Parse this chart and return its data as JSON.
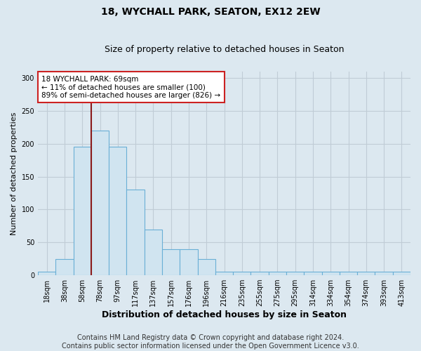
{
  "title": "18, WYCHALL PARK, SEATON, EX12 2EW",
  "subtitle": "Size of property relative to detached houses in Seaton",
  "xlabel": "Distribution of detached houses by size in Seaton",
  "ylabel": "Number of detached properties",
  "footer_line1": "Contains HM Land Registry data © Crown copyright and database right 2024.",
  "footer_line2": "Contains public sector information licensed under the Open Government Licence v3.0.",
  "bin_labels": [
    "18sqm",
    "38sqm",
    "58sqm",
    "78sqm",
    "97sqm",
    "117sqm",
    "137sqm",
    "157sqm",
    "176sqm",
    "196sqm",
    "216sqm",
    "235sqm",
    "255sqm",
    "275sqm",
    "295sqm",
    "314sqm",
    "334sqm",
    "354sqm",
    "374sqm",
    "393sqm",
    "413sqm"
  ],
  "bar_values": [
    5,
    25,
    195,
    220,
    195,
    130,
    70,
    40,
    40,
    25,
    5,
    5,
    5,
    5,
    5,
    5,
    5,
    5,
    5,
    5,
    5
  ],
  "bar_color": "#d0e4f0",
  "bar_edgecolor": "#6aafd6",
  "property_line_color": "#8b1a1a",
  "property_line_bin_index": 3,
  "annotation_text": "18 WYCHALL PARK: 69sqm\n← 11% of detached houses are smaller (100)\n89% of semi-detached houses are larger (826) →",
  "annotation_box_color": "white",
  "annotation_box_edgecolor": "#cc2222",
  "ylim": [
    0,
    310
  ],
  "yticks": [
    0,
    50,
    100,
    150,
    200,
    250,
    300
  ],
  "background_color": "#dce8f0",
  "axes_background_color": "#dce8f0",
  "grid_color": "#c0ccd6",
  "title_fontsize": 10,
  "subtitle_fontsize": 9,
  "xlabel_fontsize": 9,
  "ylabel_fontsize": 8,
  "tick_fontsize": 7,
  "footer_fontsize": 7,
  "annotation_fontsize": 7.5
}
